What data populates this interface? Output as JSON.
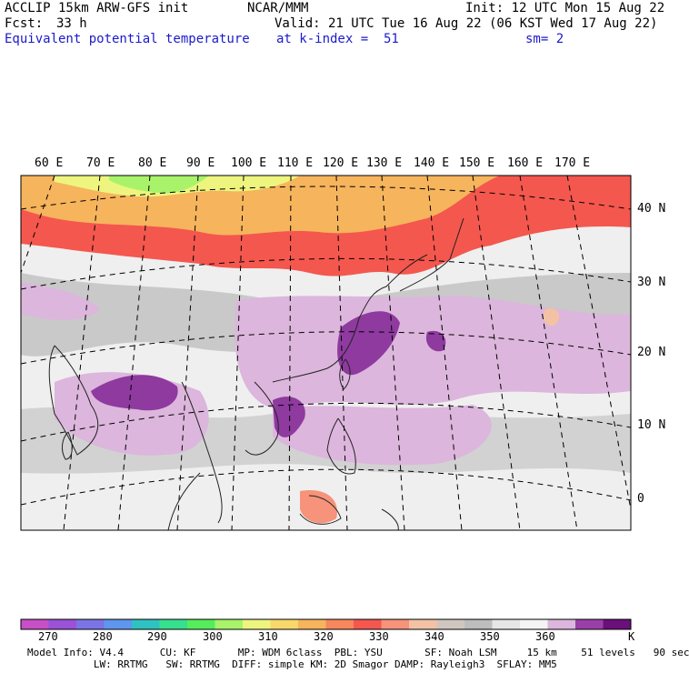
{
  "header": {
    "title": "ACCLIP 15km ARW-GFS init",
    "center": "NCAR/MMM",
    "init": "Init: 12 UTC Mon 15 Aug 22",
    "fcst_label": "Fcst:",
    "fcst_value": "33 h",
    "valid": "Valid: 21 UTC Tue 16 Aug 22 (06 KST Wed 17 Aug 22)",
    "field": "Equivalent potential temperature",
    "level": "at k-index =  51",
    "smoothing": "sm= 2"
  },
  "map": {
    "longitude_labels": [
      "60 E",
      "70 E",
      "80 E",
      "90 E",
      "100 E",
      "110 E",
      "120 E",
      "130 E",
      "140 E",
      "150 E",
      "160 E",
      "170 E"
    ],
    "latitude_labels": [
      "40 N",
      "30 N",
      "20 N",
      "10 N",
      "0"
    ]
  },
  "colorbar": {
    "unit": "K",
    "tick_labels": [
      "270",
      "280",
      "290",
      "300",
      "310",
      "320",
      "330",
      "340",
      "350",
      "360"
    ],
    "colors": [
      "#c74fc7",
      "#9a52d6",
      "#7b74e6",
      "#5f96ee",
      "#2fc2c2",
      "#36e08f",
      "#57ec5c",
      "#a8f36a",
      "#eef57e",
      "#f7d86a",
      "#f6b45c",
      "#f7875d",
      "#f4574e",
      "#f6937a",
      "#f3c2a4",
      "#cfc7bf",
      "#bdbdbd",
      "#e6e6e6",
      "#f4f4f4",
      "#dcb6dc",
      "#9a3fa8",
      "#6a107a"
    ]
  },
  "footer": {
    "line1": "Model Info: V4.4      CU: KF       MP: WDM 6class  PBL: YSU       SF: Noah LSM     15 km    51 levels   90 sec",
    "line2": "           LW: RRTMG   SW: RRTMG  DIFF: simple KM: 2D Smagor DAMP: Rayleigh3  SFLAY: MM5"
  }
}
